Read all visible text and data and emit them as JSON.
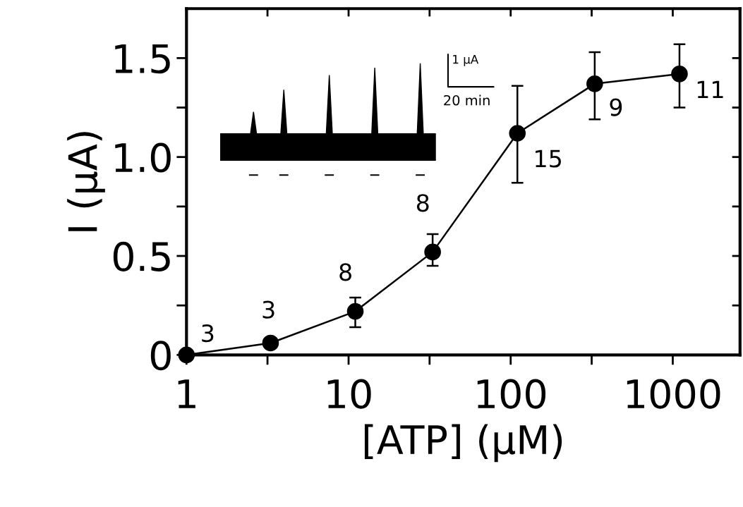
{
  "chart_data": {
    "type": "line",
    "xlabel": "[ATP] (µM)",
    "ylabel": "I (µA)",
    "x": [
      1,
      3.3,
      11,
      33,
      110,
      330,
      1100
    ],
    "series": [
      {
        "color": "#000000",
        "values": [
          0,
          0.06,
          0.22,
          0.52,
          1.12,
          1.37,
          1.42
        ],
        "errors": [
          null,
          null,
          [
            0.14,
            0.29
          ],
          [
            0.45,
            0.61
          ],
          [
            0.87,
            1.36
          ],
          [
            1.19,
            1.53
          ],
          [
            1.25,
            1.57
          ]
        ]
      }
    ],
    "log": "x",
    "xlim": [
      1,
      2600
    ],
    "ylim": [
      0,
      1.75
    ],
    "xticks": [
      1,
      {
        "value": 3.16,
        "label": null
      },
      10,
      {
        "value": 31.6,
        "label": null
      },
      100,
      {
        "value": 316,
        "label": null
      },
      1000
    ],
    "yticks": [
      {
        "value": 0,
        "label": "0"
      },
      {
        "value": 0.25,
        "label": null
      },
      {
        "value": 0.5,
        "label": "0.5"
      },
      {
        "value": 0.75,
        "label": null
      },
      {
        "value": 1.0,
        "label": "1.0"
      },
      {
        "value": 1.25,
        "label": null
      },
      {
        "value": 1.5,
        "label": "1.5"
      }
    ],
    "marker": "circle",
    "line_style": "solid",
    "grid": false,
    "annotations": [
      {
        "text": "3",
        "x": 1,
        "y": 0
      },
      {
        "text": "3",
        "x": 3.3,
        "y": 0.06
      },
      {
        "text": "8",
        "x": 11,
        "y": 0.22
      },
      {
        "text": "8",
        "x": 33,
        "y": 0.52
      },
      {
        "text": "15",
        "x": 110,
        "y": 1.12
      },
      {
        "text": "9",
        "x": 330,
        "y": 1.37
      },
      {
        "text": "11",
        "x": 1100,
        "y": 1.42
      },
      "1 µA",
      "20 min"
    ]
  }
}
